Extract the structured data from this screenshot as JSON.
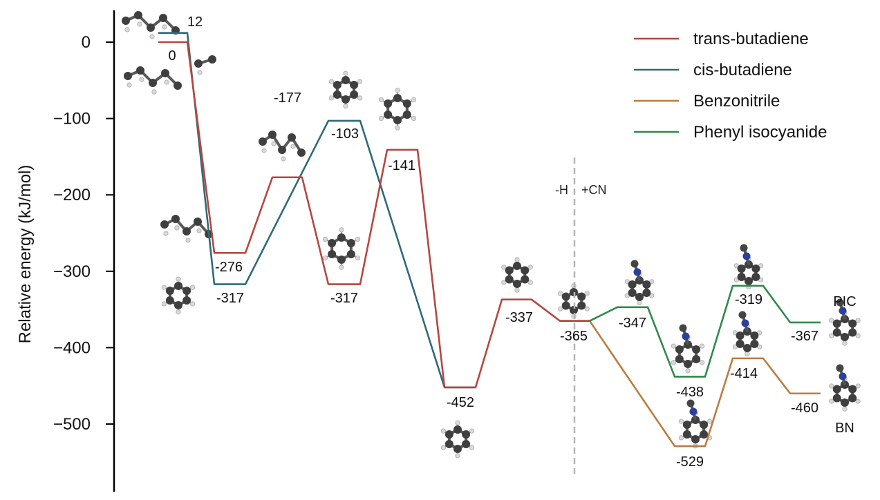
{
  "chart_data": {
    "type": "line",
    "ylabel": "Relative energy (kJ/mol)",
    "ylim": [
      -560,
      30
    ],
    "yticks": [
      0,
      -100,
      -200,
      -300,
      -400,
      -500
    ],
    "ytick_labels": [
      "0",
      "−100",
      "−200",
      "−300",
      "−400",
      "−500"
    ],
    "grid": false,
    "legend_position": "top-right",
    "annotations": {
      "left": "-H",
      "right": "+CN"
    },
    "series": [
      {
        "name": "trans-butadiene",
        "color": "#b5473f",
        "points": [
          0,
          -276,
          -177,
          -317,
          -141,
          -452,
          -337,
          -365
        ],
        "labels": [
          "0",
          "-276",
          "-177",
          "-317",
          "-141",
          "-452",
          "-337",
          "-365"
        ]
      },
      {
        "name": "cis-butadiene",
        "color": "#2d6a7c",
        "points": [
          12,
          -317,
          -103,
          -452
        ],
        "labels": [
          "12",
          "-317",
          "-103",
          ""
        ]
      },
      {
        "name": "Benzonitrile",
        "color": "#b97c3f",
        "points": [
          -365,
          -529,
          -414,
          -460
        ],
        "labels": [
          "",
          "-529",
          "-414",
          "-460"
        ],
        "end_label": "BN"
      },
      {
        "name": "Phenyl isocyanide",
        "color": "#2f8a4a",
        "points": [
          -365,
          -347,
          -438,
          -319,
          -367
        ],
        "labels": [
          "",
          "-347",
          "-438",
          "-319",
          "-367"
        ],
        "end_label": "PIC"
      }
    ]
  }
}
